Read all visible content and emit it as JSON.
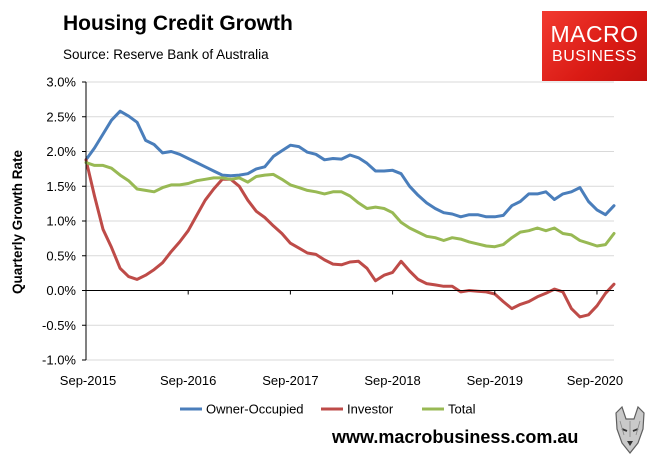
{
  "header": {
    "title": "Housing Credit Growth",
    "source": "Source: Reserve Bank of Australia"
  },
  "logo": {
    "line1": "MACRO",
    "line2": "BUSINESS"
  },
  "footer": {
    "url": "www.macrobusiness.com.au"
  },
  "colors": {
    "owner_occupied": "#4a7ebb",
    "investor": "#be4b48",
    "total": "#98b954",
    "gridline": "#d9d9d9",
    "axis": "#000000",
    "logo_bg": "#e02520"
  },
  "chart_data": {
    "type": "line",
    "title": "Housing Credit Growth",
    "xlabel": "",
    "ylabel": "Quarterly Growth Rate",
    "ylim": [
      -1.0,
      3.0
    ],
    "yticks": [
      -1.0,
      -0.5,
      0.0,
      0.5,
      1.0,
      1.5,
      2.0,
      2.5,
      3.0
    ],
    "ytick_labels": [
      "-1.0%",
      "-0.5%",
      "0.0%",
      "0.5%",
      "1.0%",
      "1.5%",
      "2.0%",
      "2.5%",
      "3.0%"
    ],
    "x_start": "Sep-2015",
    "x_end": "Sep-2020",
    "xtick_labels": [
      "Sep-2015",
      "Sep-2016",
      "Sep-2017",
      "Sep-2018",
      "Sep-2019",
      "Sep-2020"
    ],
    "frequency": "monthly",
    "legend_position": "bottom",
    "grid": true,
    "series": [
      {
        "name": "Owner-Occupied",
        "color": "#4a7ebb",
        "values": [
          1.88,
          2.05,
          2.25,
          2.45,
          2.58,
          2.51,
          2.42,
          2.16,
          2.1,
          1.98,
          2.0,
          1.96,
          1.9,
          1.84,
          1.78,
          1.72,
          1.66,
          1.65,
          1.66,
          1.68,
          1.75,
          1.78,
          1.93,
          2.01,
          2.09,
          2.07,
          1.99,
          1.96,
          1.88,
          1.9,
          1.89,
          1.95,
          1.91,
          1.83,
          1.72,
          1.72,
          1.73,
          1.68,
          1.5,
          1.37,
          1.26,
          1.18,
          1.12,
          1.1,
          1.06,
          1.09,
          1.09,
          1.06,
          1.06,
          1.08,
          1.22,
          1.28,
          1.39,
          1.39,
          1.42,
          1.31,
          1.39,
          1.42,
          1.48,
          1.28,
          1.16,
          1.09,
          1.22
        ]
      },
      {
        "name": "Investor",
        "color": "#be4b48",
        "values": [
          1.88,
          1.36,
          0.88,
          0.62,
          0.32,
          0.2,
          0.16,
          0.22,
          0.3,
          0.4,
          0.56,
          0.7,
          0.86,
          1.08,
          1.3,
          1.46,
          1.6,
          1.6,
          1.5,
          1.3,
          1.14,
          1.05,
          0.93,
          0.82,
          0.68,
          0.61,
          0.54,
          0.52,
          0.44,
          0.38,
          0.37,
          0.41,
          0.42,
          0.32,
          0.14,
          0.22,
          0.26,
          0.42,
          0.28,
          0.16,
          0.1,
          0.08,
          0.06,
          0.06,
          -0.02,
          0.0,
          -0.01,
          -0.02,
          -0.05,
          -0.16,
          -0.26,
          -0.2,
          -0.16,
          -0.09,
          -0.04,
          0.02,
          -0.02,
          -0.26,
          -0.38,
          -0.35,
          -0.22,
          -0.04,
          0.09
        ]
      },
      {
        "name": "Total",
        "color": "#98b954",
        "values": [
          1.84,
          1.8,
          1.8,
          1.76,
          1.66,
          1.58,
          1.46,
          1.44,
          1.42,
          1.48,
          1.52,
          1.52,
          1.54,
          1.58,
          1.6,
          1.62,
          1.62,
          1.6,
          1.62,
          1.56,
          1.64,
          1.66,
          1.67,
          1.6,
          1.52,
          1.48,
          1.44,
          1.42,
          1.39,
          1.42,
          1.42,
          1.36,
          1.26,
          1.18,
          1.2,
          1.18,
          1.12,
          0.98,
          0.9,
          0.84,
          0.78,
          0.76,
          0.72,
          0.76,
          0.74,
          0.7,
          0.67,
          0.64,
          0.63,
          0.66,
          0.76,
          0.84,
          0.86,
          0.9,
          0.86,
          0.9,
          0.82,
          0.8,
          0.72,
          0.68,
          0.64,
          0.66,
          0.82
        ]
      }
    ]
  }
}
